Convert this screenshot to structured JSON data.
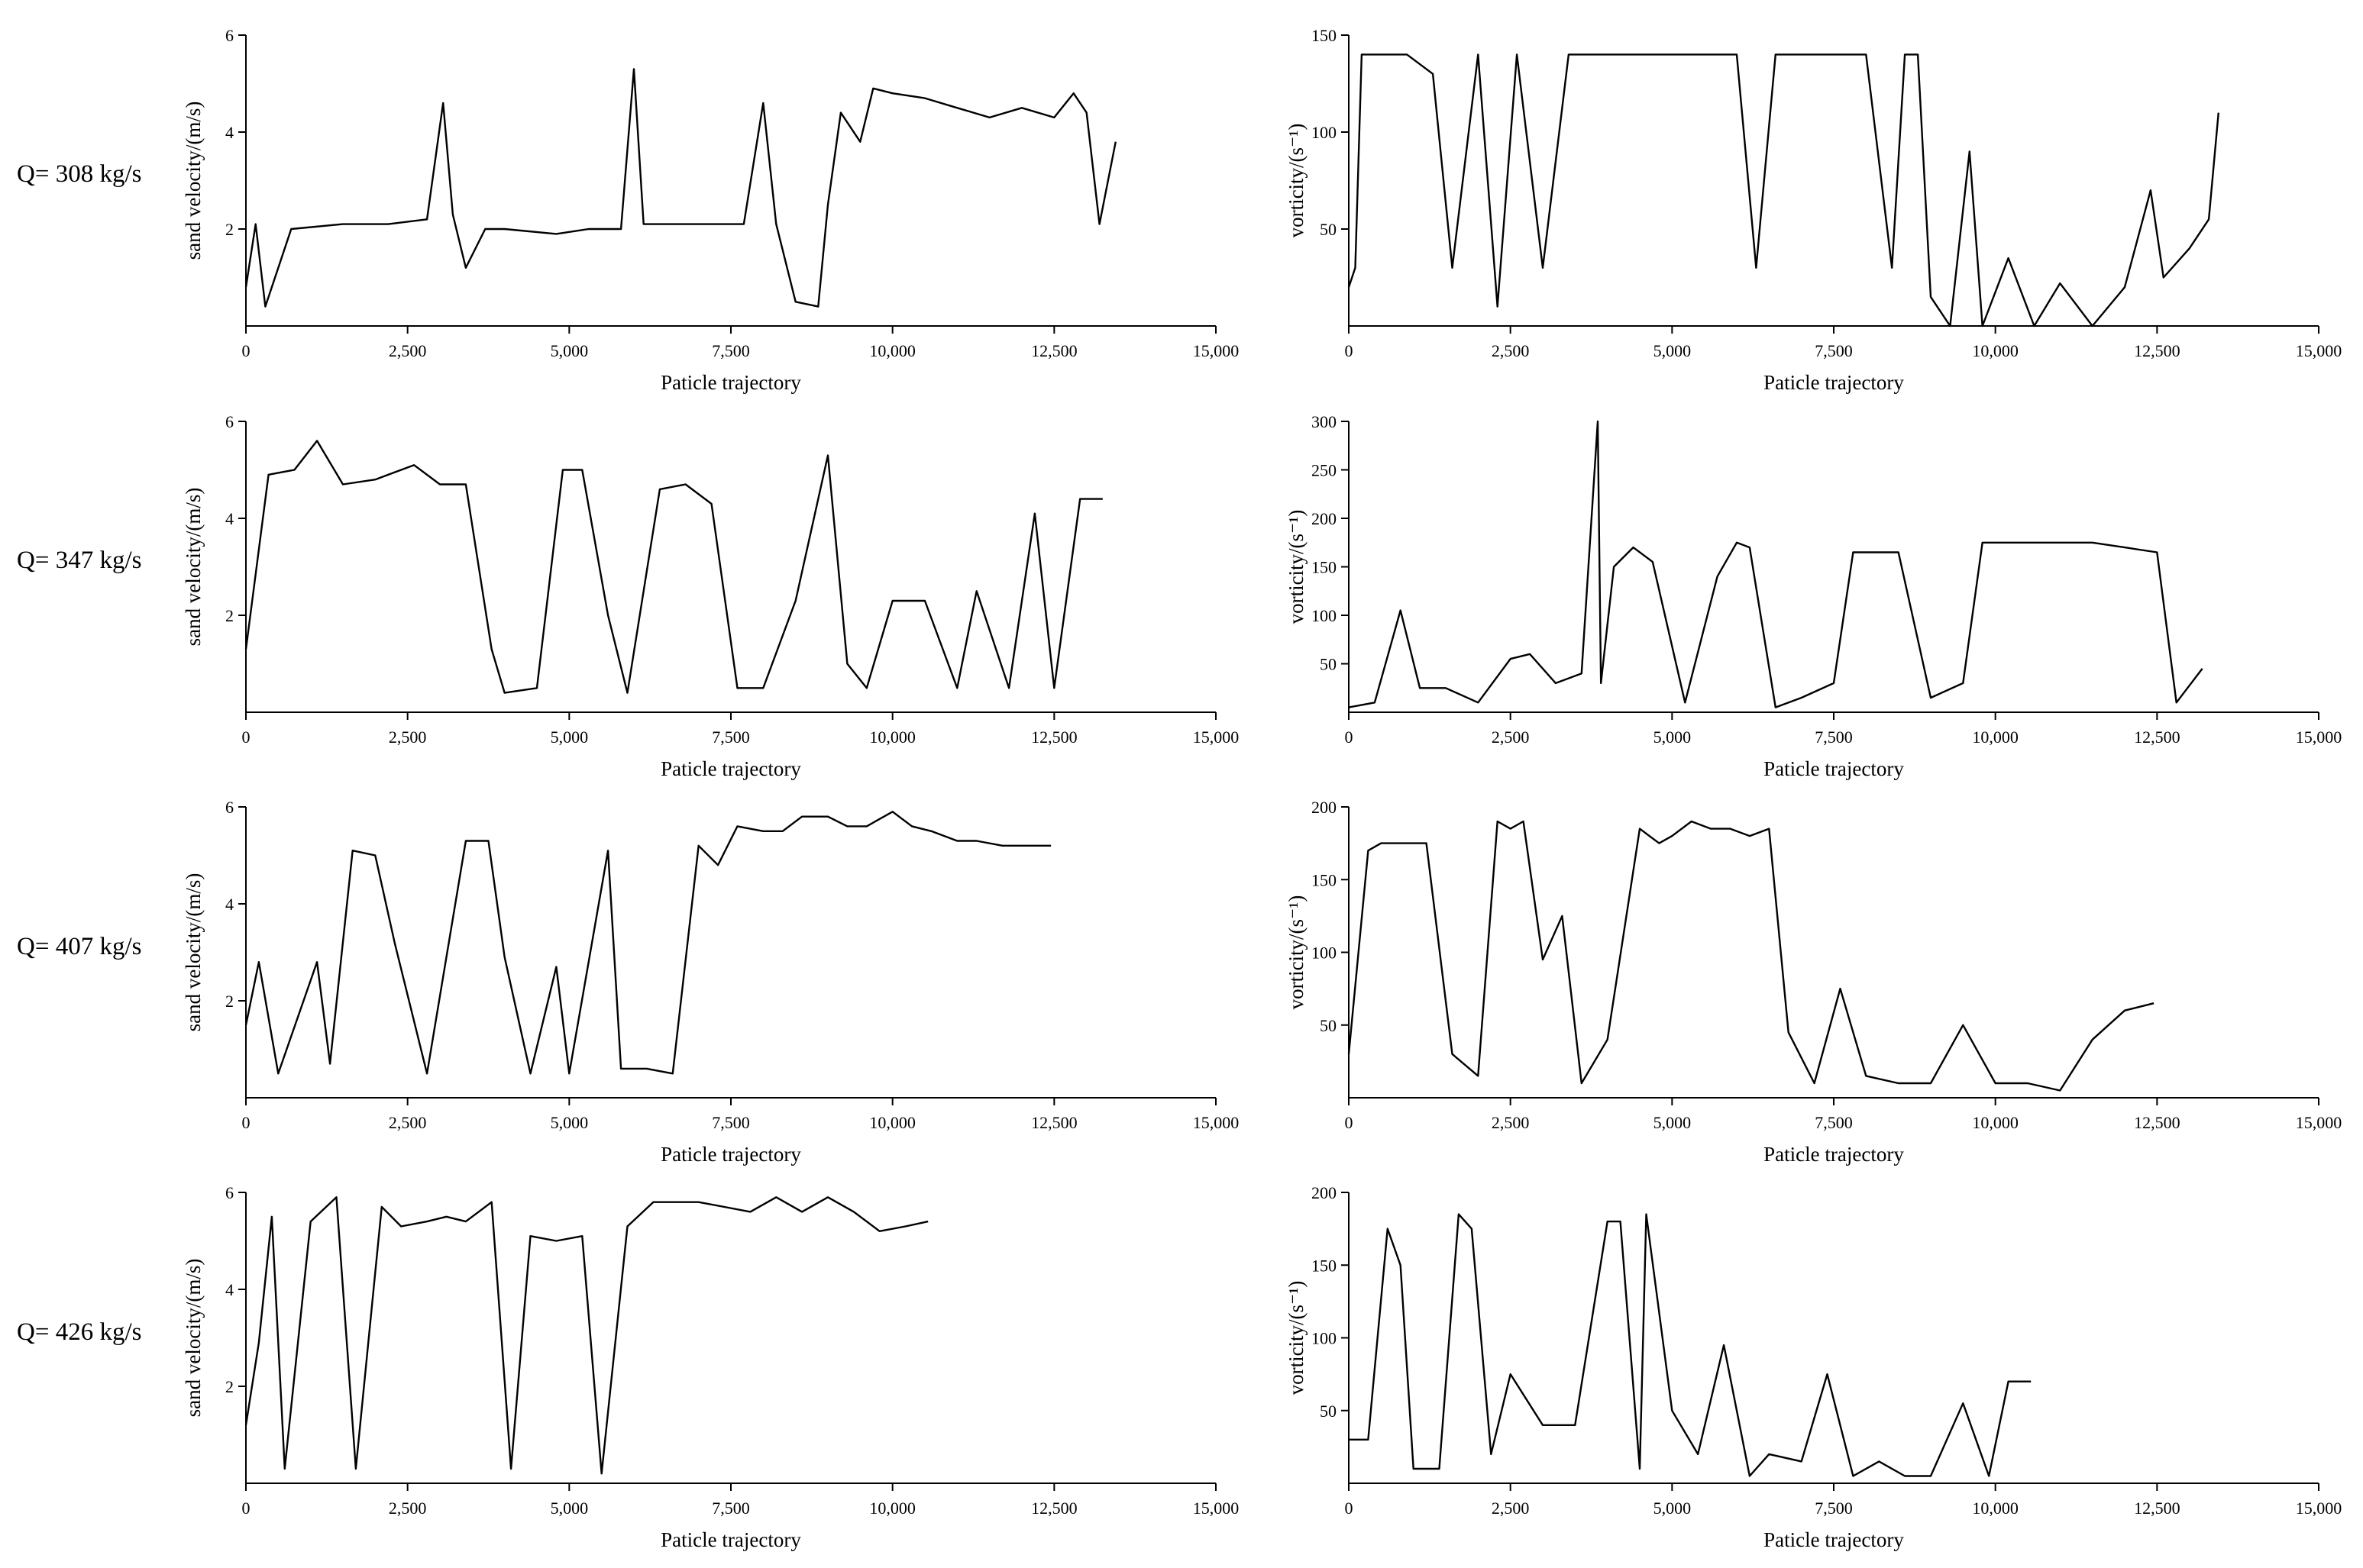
{
  "rows": [
    {
      "label": "Q= 308 kg/s"
    },
    {
      "label": "Q= 347 kg/s"
    },
    {
      "label": "Q= 407 kg/s"
    },
    {
      "label": "Q= 426 kg/s"
    }
  ],
  "chart_data": [
    {
      "id": "vel-308",
      "type": "line",
      "row": 0,
      "col": 0,
      "xlabel": "Paticle trajectory",
      "ylabel": "sand velocity/(m/s)",
      "xlim": [
        0,
        15000
      ],
      "ylim": [
        0,
        6
      ],
      "xticks": [
        0,
        2500,
        5000,
        7500,
        10000,
        12500,
        15000
      ],
      "xtick_labels": [
        "0",
        "2,500",
        "5,000",
        "7,500",
        "10,000",
        "12,500",
        "15,000"
      ],
      "yticks": [
        2,
        4,
        6
      ],
      "ytick_labels": [
        "2",
        "4",
        "6"
      ],
      "series": [
        {
          "x": [
            0,
            150,
            300,
            700,
            1500,
            2200,
            2800,
            3050,
            3200,
            3400,
            3700,
            4000,
            4800,
            5300,
            5800,
            6000,
            6150,
            6600,
            6900,
            7400,
            7700,
            8000,
            8200,
            8500,
            8850,
            9000,
            9200,
            9500,
            9700,
            10000,
            10500,
            11000,
            11500,
            12000,
            12500,
            12800,
            13000,
            13200,
            13450
          ],
          "y": [
            0.8,
            2.1,
            0.4,
            2.0,
            2.1,
            2.1,
            2.2,
            4.6,
            2.3,
            1.2,
            2.0,
            2.0,
            1.9,
            2.0,
            2.0,
            5.3,
            2.1,
            2.1,
            2.1,
            2.1,
            2.1,
            4.6,
            2.1,
            0.5,
            0.4,
            2.5,
            4.4,
            3.8,
            4.9,
            4.8,
            4.7,
            4.5,
            4.3,
            4.5,
            4.3,
            4.8,
            4.4,
            2.1,
            3.8
          ]
        }
      ]
    },
    {
      "id": "vort-308",
      "type": "line",
      "row": 0,
      "col": 1,
      "xlabel": "Paticle trajectory",
      "ylabel": "vorticity/(s⁻¹)",
      "xlim": [
        0,
        15000
      ],
      "ylim": [
        0,
        150
      ],
      "xticks": [
        0,
        2500,
        5000,
        7500,
        10000,
        12500,
        15000
      ],
      "xtick_labels": [
        "0",
        "2,500",
        "5,000",
        "7,500",
        "10,000",
        "12,500",
        "15,000"
      ],
      "yticks": [
        50,
        100,
        150
      ],
      "ytick_labels": [
        "50",
        "100",
        "150"
      ],
      "series": [
        {
          "x": [
            0,
            100,
            200,
            500,
            900,
            1300,
            1600,
            2000,
            2300,
            2600,
            3000,
            3400,
            3600,
            3900,
            4200,
            4600,
            5000,
            5500,
            6000,
            6300,
            6600,
            7000,
            7300,
            7600,
            8000,
            8400,
            8600,
            8800,
            9000,
            9300,
            9600,
            9800,
            10200,
            10600,
            11000,
            11500,
            12000,
            12400,
            12600,
            13000,
            13300,
            13450
          ],
          "y": [
            20,
            30,
            140,
            140,
            140,
            130,
            30,
            140,
            10,
            140,
            30,
            140,
            140,
            140,
            140,
            140,
            140,
            140,
            140,
            30,
            140,
            140,
            140,
            140,
            140,
            30,
            140,
            140,
            15,
            0,
            90,
            0,
            35,
            0,
            22,
            0,
            20,
            70,
            25,
            40,
            55,
            110
          ]
        }
      ]
    },
    {
      "id": "vel-347",
      "type": "line",
      "row": 1,
      "col": 0,
      "xlabel": "Paticle trajectory",
      "ylabel": "sand velocity/(m/s)",
      "xlim": [
        0,
        15000
      ],
      "ylim": [
        0,
        6
      ],
      "xticks": [
        0,
        2500,
        5000,
        7500,
        10000,
        12500,
        15000
      ],
      "xtick_labels": [
        "0",
        "2,500",
        "5,000",
        "7,500",
        "10,000",
        "12,500",
        "15,000"
      ],
      "yticks": [
        2,
        4,
        6
      ],
      "ytick_labels": [
        "2",
        "4",
        "6"
      ],
      "series": [
        {
          "x": [
            0,
            350,
            750,
            1100,
            1500,
            2000,
            2600,
            3000,
            3400,
            3800,
            4000,
            4500,
            4900,
            5200,
            5600,
            5900,
            6400,
            6800,
            7200,
            7600,
            8000,
            8500,
            9000,
            9300,
            9600,
            10000,
            10500,
            11000,
            11300,
            11800,
            12200,
            12500,
            12900,
            13250
          ],
          "y": [
            1.3,
            4.9,
            5.0,
            5.6,
            4.7,
            4.8,
            5.1,
            4.7,
            4.7,
            1.3,
            0.4,
            0.5,
            5.0,
            5.0,
            2.0,
            0.4,
            4.6,
            4.7,
            4.3,
            0.5,
            0.5,
            2.3,
            5.3,
            1.0,
            0.5,
            2.3,
            2.3,
            0.5,
            2.5,
            0.5,
            4.1,
            0.5,
            4.4,
            4.4
          ]
        }
      ]
    },
    {
      "id": "vort-347",
      "type": "line",
      "row": 1,
      "col": 1,
      "xlabel": "Paticle trajectory",
      "ylabel": "vorticity/(s⁻¹)",
      "xlim": [
        0,
        15000
      ],
      "ylim": [
        0,
        300
      ],
      "xticks": [
        0,
        2500,
        5000,
        7500,
        10000,
        12500,
        15000
      ],
      "xtick_labels": [
        "0",
        "2,500",
        "5,000",
        "7,500",
        "10,000",
        "12,500",
        "15,000"
      ],
      "yticks": [
        50,
        100,
        150,
        200,
        250,
        300
      ],
      "ytick_labels": [
        "50",
        "100",
        "150",
        "200",
        "250",
        "300"
      ],
      "series": [
        {
          "x": [
            0,
            400,
            800,
            1100,
            1500,
            2000,
            2500,
            2800,
            3200,
            3600,
            3850,
            3900,
            4100,
            4400,
            4700,
            5200,
            5700,
            6000,
            6200,
            6600,
            7000,
            7500,
            7800,
            8200,
            8500,
            9000,
            9500,
            9800,
            10200,
            10600,
            11000,
            11500,
            12000,
            12500,
            12800,
            13200
          ],
          "y": [
            5,
            10,
            105,
            25,
            25,
            10,
            55,
            60,
            30,
            40,
            300,
            30,
            150,
            170,
            155,
            10,
            140,
            175,
            170,
            5,
            15,
            30,
            165,
            165,
            165,
            15,
            30,
            175,
            175,
            175,
            175,
            175,
            170,
            165,
            10,
            45
          ]
        }
      ]
    },
    {
      "id": "vel-407",
      "type": "line",
      "row": 2,
      "col": 0,
      "xlabel": "Paticle trajectory",
      "ylabel": "sand velocity/(m/s)",
      "xlim": [
        0,
        15000
      ],
      "ylim": [
        0,
        6
      ],
      "xticks": [
        0,
        2500,
        5000,
        7500,
        10000,
        12500,
        15000
      ],
      "xtick_labels": [
        "0",
        "2,500",
        "5,000",
        "7,500",
        "10,000",
        "12,500",
        "15,000"
      ],
      "yticks": [
        2,
        4,
        6
      ],
      "ytick_labels": [
        "2",
        "4",
        "6"
      ],
      "series": [
        {
          "x": [
            0,
            200,
            500,
            1100,
            1300,
            1650,
            2000,
            2300,
            2800,
            3100,
            3400,
            3750,
            4000,
            4400,
            4800,
            5000,
            5600,
            5800,
            6200,
            6600,
            7000,
            7300,
            7600,
            8000,
            8300,
            8600,
            9000,
            9300,
            9600,
            10000,
            10300,
            10600,
            11000,
            11300,
            11700,
            12100,
            12450
          ],
          "y": [
            1.5,
            2.8,
            0.5,
            2.8,
            0.7,
            5.1,
            5.0,
            3.2,
            0.5,
            2.9,
            5.3,
            5.3,
            2.9,
            0.5,
            2.7,
            0.5,
            5.1,
            0.6,
            0.6,
            0.5,
            5.2,
            4.8,
            5.6,
            5.5,
            5.5,
            5.8,
            5.8,
            5.6,
            5.6,
            5.9,
            5.6,
            5.5,
            5.3,
            5.3,
            5.2,
            5.2,
            5.2
          ]
        }
      ]
    },
    {
      "id": "vort-407",
      "type": "line",
      "row": 2,
      "col": 1,
      "xlabel": "Paticle trajectory",
      "ylabel": "vorticity/(s⁻¹)",
      "xlim": [
        0,
        15000
      ],
      "ylim": [
        0,
        200
      ],
      "xticks": [
        0,
        2500,
        5000,
        7500,
        10000,
        12500,
        15000
      ],
      "xtick_labels": [
        "0",
        "2,500",
        "5,000",
        "7,500",
        "10,000",
        "12,500",
        "15,000"
      ],
      "yticks": [
        50,
        100,
        150,
        200
      ],
      "ytick_labels": [
        "50",
        "100",
        "150",
        "200"
      ],
      "series": [
        {
          "x": [
            0,
            300,
            500,
            900,
            1200,
            1600,
            2000,
            2300,
            2500,
            2700,
            3000,
            3300,
            3600,
            4000,
            4500,
            4800,
            5000,
            5300,
            5600,
            5900,
            6200,
            6500,
            6800,
            7200,
            7600,
            8000,
            8500,
            9000,
            9500,
            10000,
            10500,
            11000,
            11500,
            12000,
            12450
          ],
          "y": [
            30,
            170,
            175,
            175,
            175,
            30,
            15,
            190,
            185,
            190,
            95,
            125,
            10,
            40,
            185,
            175,
            180,
            190,
            185,
            185,
            180,
            185,
            45,
            10,
            75,
            15,
            10,
            10,
            50,
            10,
            10,
            5,
            40,
            60,
            65
          ]
        }
      ]
    },
    {
      "id": "vel-426",
      "type": "line",
      "row": 3,
      "col": 0,
      "xlabel": "Paticle trajectory",
      "ylabel": "sand velocity/(m/s)",
      "xlim": [
        0,
        15000
      ],
      "ylim": [
        0,
        6
      ],
      "xticks": [
        0,
        2500,
        5000,
        7500,
        10000,
        12500,
        15000
      ],
      "xtick_labels": [
        "0",
        "2,500",
        "5,000",
        "7,500",
        "10,000",
        "12,500",
        "15,000"
      ],
      "yticks": [
        2,
        4,
        6
      ],
      "ytick_labels": [
        "2",
        "4",
        "6"
      ],
      "series": [
        {
          "x": [
            0,
            200,
            400,
            600,
            1000,
            1400,
            1700,
            2100,
            2400,
            2800,
            3100,
            3400,
            3800,
            4100,
            4400,
            4800,
            5200,
            5500,
            5900,
            6300,
            6600,
            7000,
            7400,
            7800,
            8200,
            8600,
            9000,
            9400,
            9800,
            10200,
            10550
          ],
          "y": [
            1.2,
            2.9,
            5.5,
            0.3,
            5.4,
            5.9,
            0.3,
            5.7,
            5.3,
            5.4,
            5.5,
            5.4,
            5.8,
            0.3,
            5.1,
            5.0,
            5.1,
            0.2,
            5.3,
            5.8,
            5.8,
            5.8,
            5.7,
            5.6,
            5.9,
            5.6,
            5.9,
            5.6,
            5.2,
            5.3,
            5.4
          ]
        }
      ]
    },
    {
      "id": "vort-426",
      "type": "line",
      "row": 3,
      "col": 1,
      "xlabel": "Paticle trajectory",
      "ylabel": "vorticity/(s⁻¹)",
      "xlim": [
        0,
        15000
      ],
      "ylim": [
        0,
        200
      ],
      "xticks": [
        0,
        2500,
        5000,
        7500,
        10000,
        12500,
        15000
      ],
      "xtick_labels": [
        "0",
        "2,500",
        "5,000",
        "7,500",
        "10,000",
        "12,500",
        "15,000"
      ],
      "yticks": [
        50,
        100,
        150,
        200
      ],
      "ytick_labels": [
        "50",
        "100",
        "150",
        "200"
      ],
      "series": [
        {
          "x": [
            0,
            300,
            600,
            800,
            1000,
            1400,
            1700,
            1900,
            2200,
            2500,
            3000,
            3500,
            4000,
            4200,
            4500,
            4600,
            5000,
            5400,
            5800,
            6200,
            6500,
            7000,
            7400,
            7800,
            8200,
            8600,
            9000,
            9500,
            9900,
            10200,
            10550
          ],
          "y": [
            30,
            30,
            175,
            150,
            10,
            10,
            185,
            175,
            20,
            75,
            40,
            40,
            180,
            180,
            10,
            185,
            50,
            20,
            95,
            5,
            20,
            15,
            75,
            5,
            15,
            5,
            5,
            55,
            5,
            70,
            70
          ]
        }
      ]
    }
  ]
}
